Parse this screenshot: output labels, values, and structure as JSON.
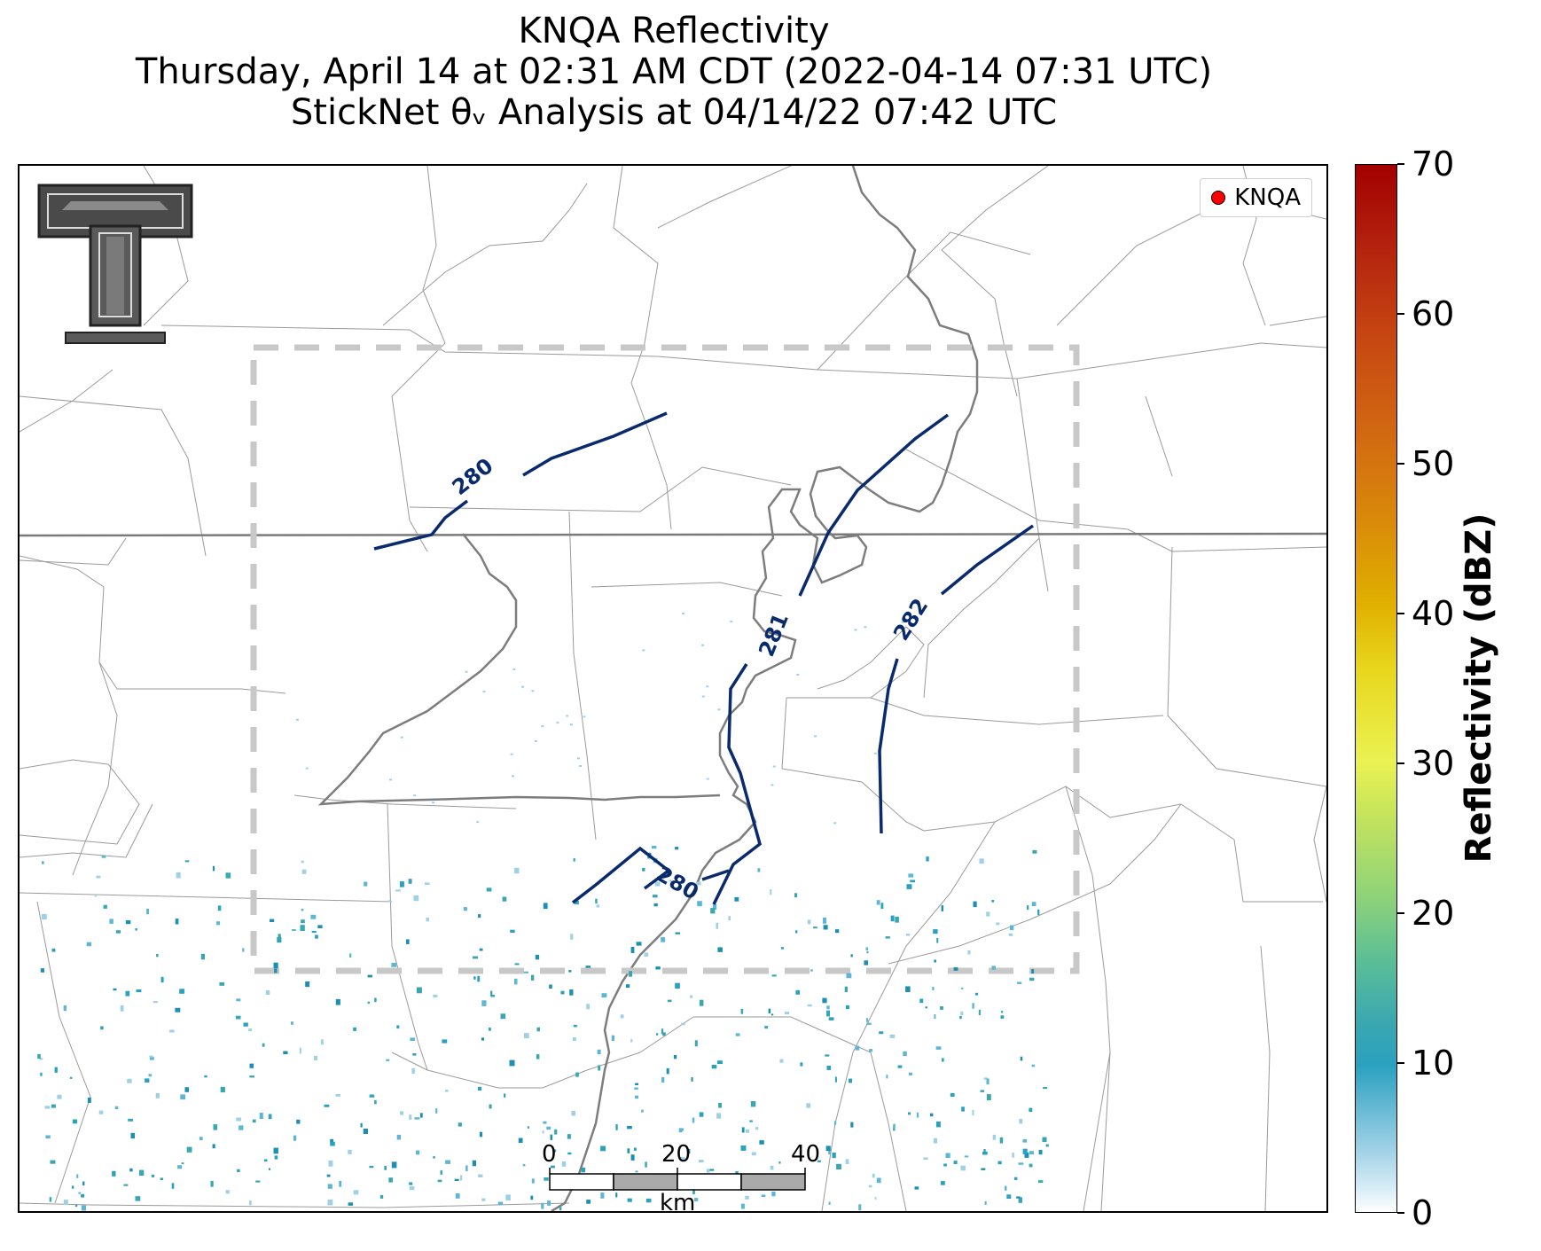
{
  "title": {
    "line1": "KNQA Reflectivity",
    "line2": "Thursday, April 14 at 02:31 AM CDT (2022-04-14 07:31 UTC)",
    "line3": "StickNet θᵥ Analysis at 04/14/22 07:42 UTC"
  },
  "legend": {
    "label": "KNQA",
    "marker_color": "#ff0000"
  },
  "contours": [
    {
      "label": "280"
    },
    {
      "label": "281"
    },
    {
      "label": "282"
    },
    {
      "label": "280"
    }
  ],
  "contour_color": "#0a2a6e",
  "colorbar": {
    "title": "Reflectivity (dBZ)",
    "ticks": [
      "0",
      "10",
      "20",
      "30",
      "40",
      "50",
      "60",
      "70"
    ],
    "range": [
      0,
      70
    ]
  },
  "scalebar": {
    "ticks": [
      "0",
      "20",
      "40"
    ],
    "unit": "km"
  },
  "logo": {
    "name": "texas-tech-double-t"
  }
}
